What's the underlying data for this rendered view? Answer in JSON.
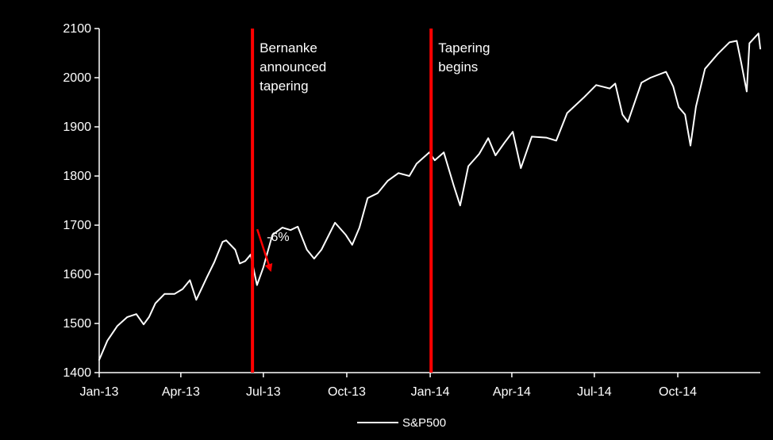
{
  "chart_data": {
    "type": "line",
    "title": "",
    "xlabel": "",
    "ylabel": "",
    "ylim": [
      1400,
      2100
    ],
    "yticks": [
      1400,
      1500,
      1600,
      1700,
      1800,
      1900,
      2000,
      2100
    ],
    "ytick_labels": [
      "1400",
      "1500",
      "1600",
      "1700",
      "1800",
      "1900",
      "2000",
      "2100"
    ],
    "xlim": [
      "2013-01-01",
      "2014-12-31"
    ],
    "xticks": [
      "2013-01-01",
      "2013-04-01",
      "2013-07-01",
      "2013-10-01",
      "2014-01-01",
      "2014-04-01",
      "2014-07-01",
      "2014-10-01"
    ],
    "xtick_labels": [
      "Jan-13",
      "Apr-13",
      "Jul-13",
      "Oct-13",
      "Jan-14",
      "Apr-14",
      "Jul-14",
      "Oct-14"
    ],
    "grid": false,
    "legend_position": "bottom-center",
    "colors": {
      "background": "#000000",
      "series": "#ffffff",
      "event_line": "#ff0000",
      "axis": "#ffffff"
    },
    "series": [
      {
        "name": "S&P500",
        "x": [
          "2013-01-01",
          "2013-01-10",
          "2013-01-21",
          "2013-02-01",
          "2013-02-11",
          "2013-02-19",
          "2013-02-25",
          "2013-03-04",
          "2013-03-14",
          "2013-03-25",
          "2013-04-03",
          "2013-04-11",
          "2013-04-18",
          "2013-04-30",
          "2013-05-08",
          "2013-05-17",
          "2013-05-21",
          "2013-05-31",
          "2013-06-05",
          "2013-06-11",
          "2013-06-17",
          "2013-06-24",
          "2013-07-01",
          "2013-07-11",
          "2013-07-22",
          "2013-07-31",
          "2013-08-08",
          "2013-08-18",
          "2013-08-26",
          "2013-09-03",
          "2013-09-18",
          "2013-09-30",
          "2013-10-07",
          "2013-10-15",
          "2013-10-24",
          "2013-11-04",
          "2013-11-15",
          "2013-11-27",
          "2013-12-09",
          "2013-12-17",
          "2013-12-31",
          "2014-01-06",
          "2014-01-16",
          "2014-01-27",
          "2014-02-03",
          "2014-02-12",
          "2014-02-24",
          "2014-03-06",
          "2014-03-14",
          "2014-03-24",
          "2014-04-02",
          "2014-04-11",
          "2014-04-23",
          "2014-05-09",
          "2014-05-20",
          "2014-06-01",
          "2014-06-19",
          "2014-07-03",
          "2014-07-18",
          "2014-07-24",
          "2014-08-01",
          "2014-08-07",
          "2014-08-22",
          "2014-09-01",
          "2014-09-18",
          "2014-09-26",
          "2014-10-02",
          "2014-10-09",
          "2014-10-15",
          "2014-10-21",
          "2014-10-31",
          "2014-11-14",
          "2014-11-27",
          "2014-12-05",
          "2014-12-10",
          "2014-12-16",
          "2014-12-19",
          "2014-12-29",
          "2014-12-31"
        ],
        "values": [
          1426,
          1465,
          1495,
          1513,
          1519,
          1498,
          1513,
          1541,
          1560,
          1560,
          1570,
          1588,
          1548,
          1595,
          1625,
          1666,
          1669,
          1650,
          1622,
          1627,
          1640,
          1578,
          1614,
          1680,
          1695,
          1690,
          1697,
          1650,
          1632,
          1650,
          1705,
          1680,
          1660,
          1695,
          1755,
          1765,
          1790,
          1806,
          1800,
          1825,
          1848,
          1832,
          1848,
          1780,
          1740,
          1820,
          1845,
          1877,
          1842,
          1868,
          1890,
          1816,
          1880,
          1878,
          1872,
          1928,
          1959,
          1985,
          1978,
          1988,
          1925,
          1910,
          1990,
          2000,
          2012,
          1982,
          1940,
          1925,
          1862,
          1941,
          2018,
          2048,
          2072,
          2075,
          2030,
          1972,
          2070,
          2090,
          2059
        ]
      }
    ],
    "events": [
      {
        "date": "2013-06-19",
        "label_lines": [
          "Bernanke",
          "announced",
          "tapering"
        ]
      },
      {
        "date": "2014-01-02",
        "label_lines": [
          "Tapering",
          "begins"
        ]
      }
    ],
    "annotations": [
      {
        "text": "-6%",
        "from": [
          "2013-06-19",
          1666
        ],
        "to": [
          "2013-07-09",
          1608
        ]
      }
    ]
  }
}
